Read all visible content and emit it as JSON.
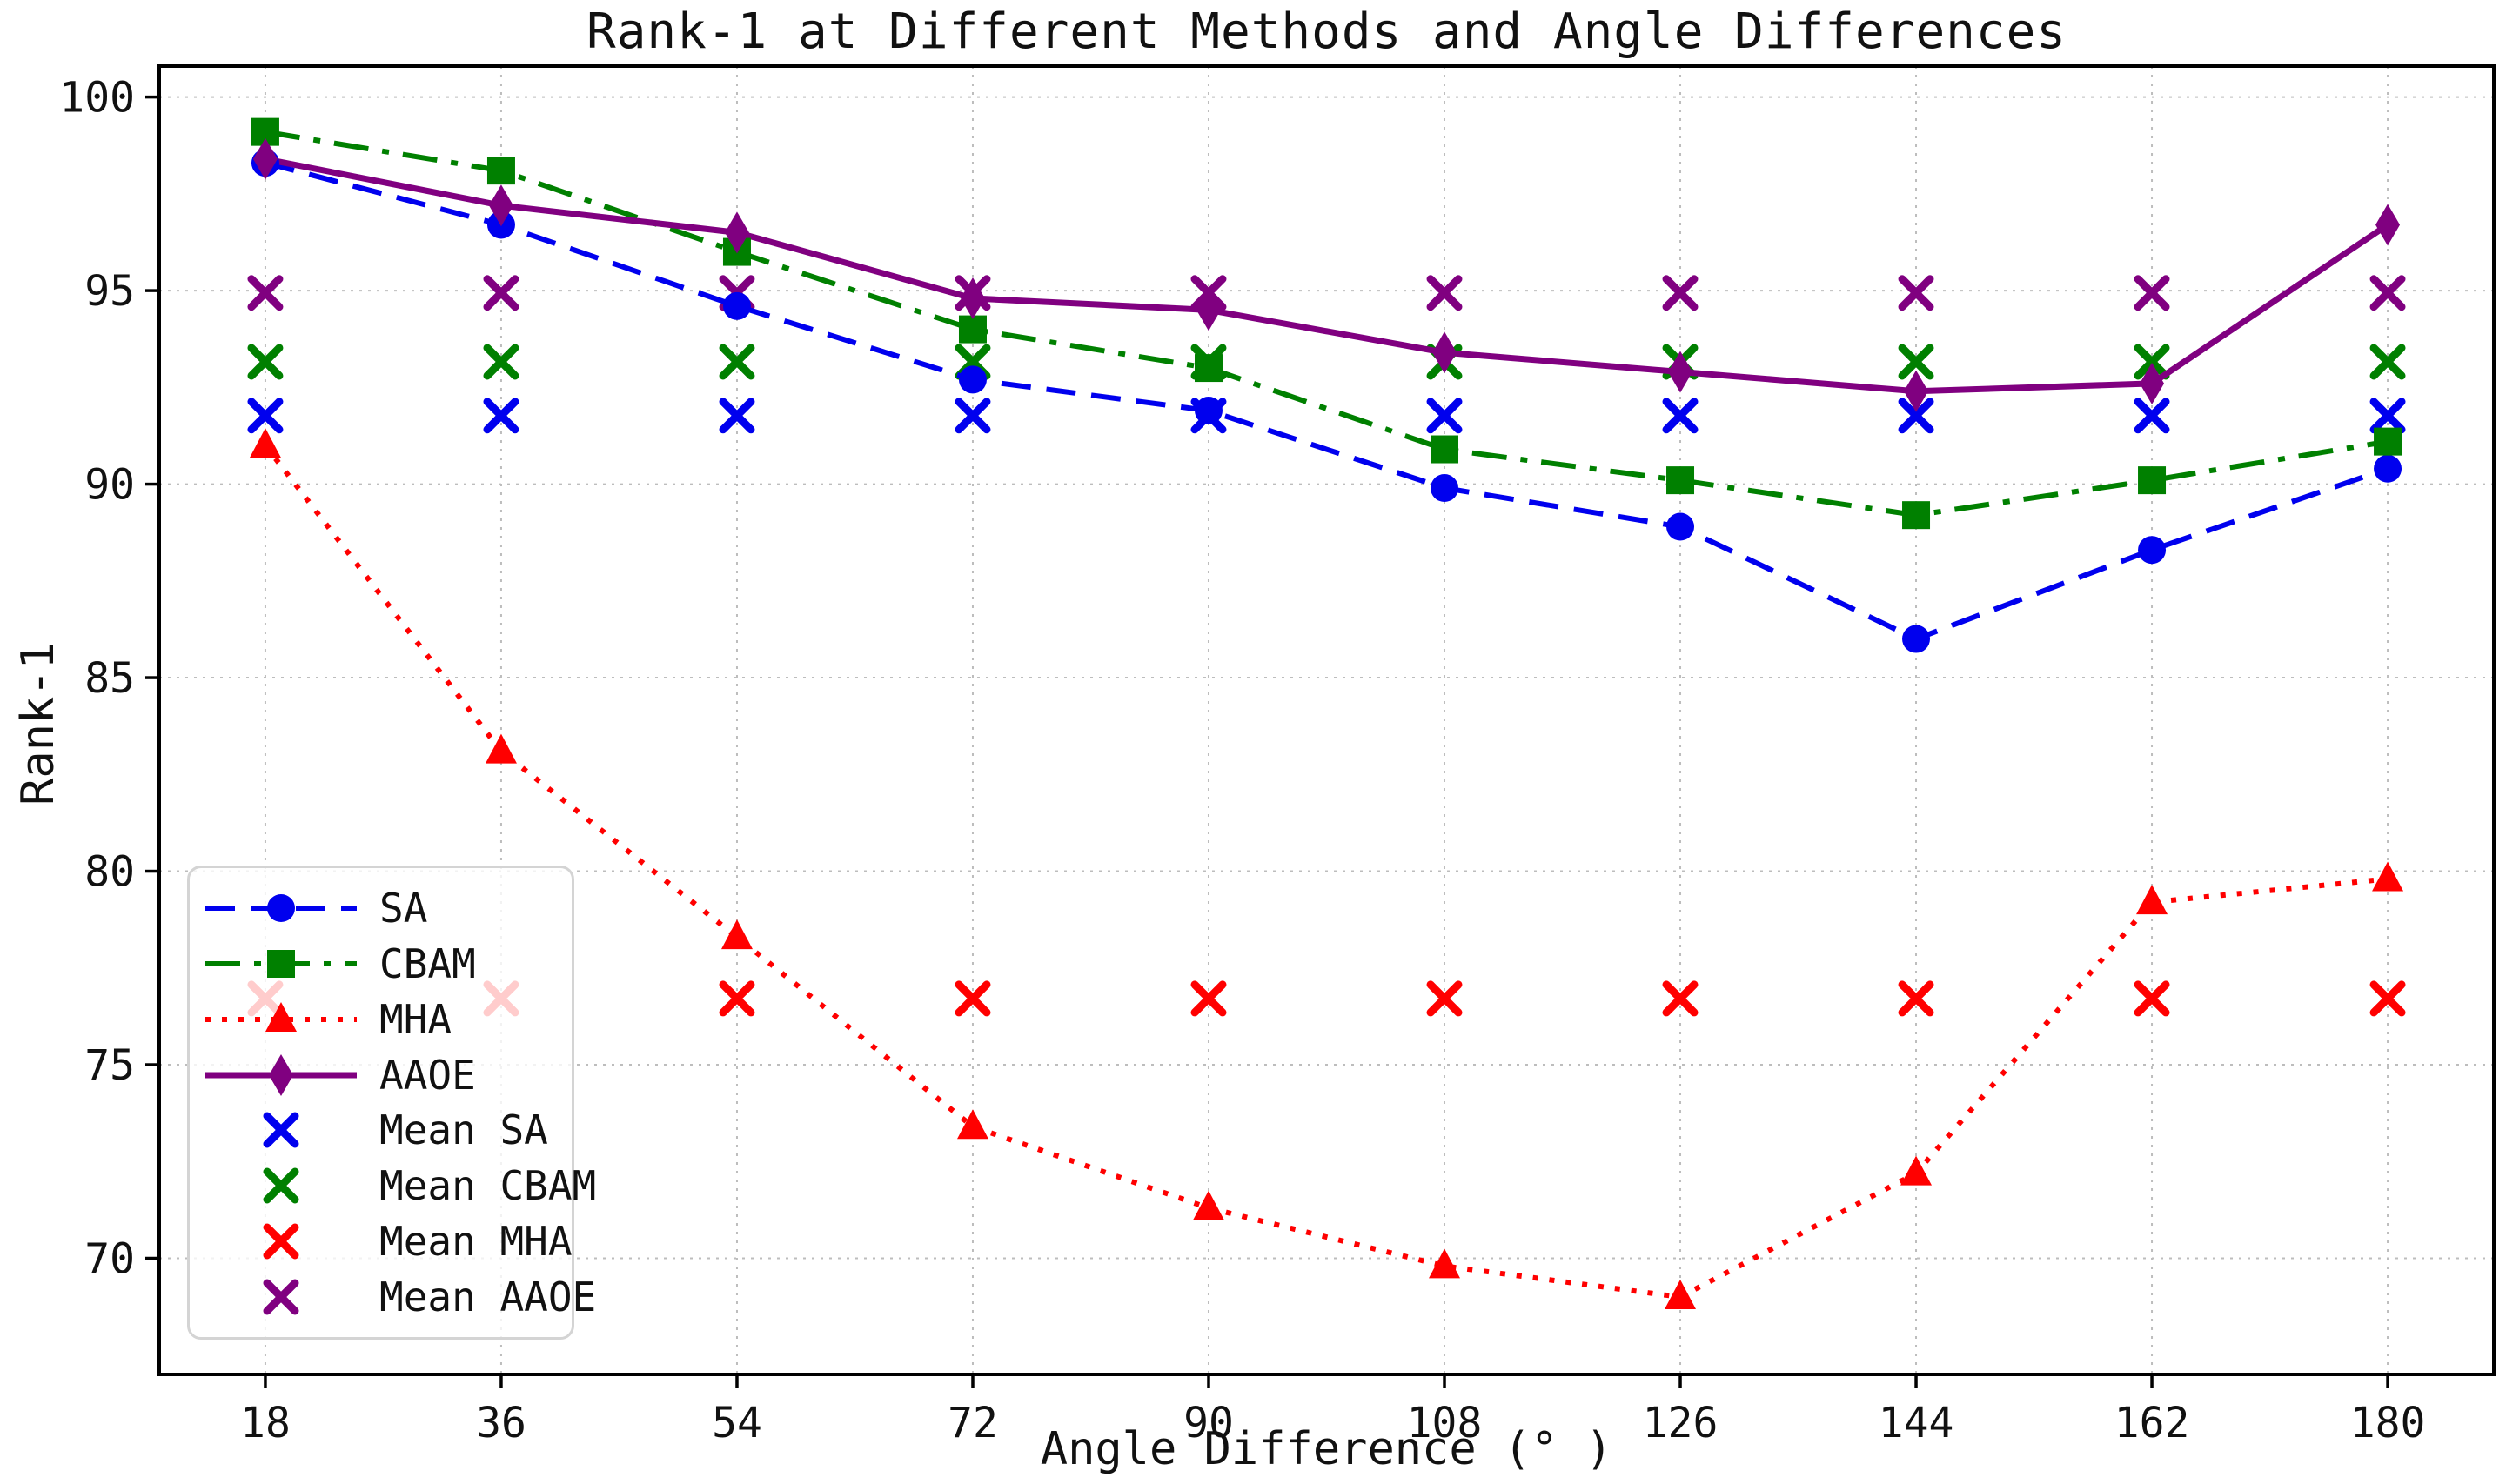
{
  "chart_data": {
    "type": "line",
    "title": "Rank-1 at Different Methods and Angle Differences",
    "xlabel": "Angle Difference (° )",
    "ylabel": "Rank-1",
    "x": [
      18,
      36,
      54,
      72,
      90,
      108,
      126,
      144,
      162,
      180
    ],
    "xticks": [
      18,
      36,
      54,
      72,
      90,
      108,
      126,
      144,
      162,
      180
    ],
    "yticks": [
      70,
      75,
      80,
      85,
      90,
      95,
      100
    ],
    "xlim": [
      9.9,
      188.1
    ],
    "ylim": [
      67.0,
      100.8
    ],
    "grid": true,
    "grid_color": "#bdbdbd",
    "axis_color": "#000000",
    "legend_position": "lower-left",
    "series": [
      {
        "name": "SA",
        "color": "#0000ee",
        "linestyle": "dashed",
        "marker": "circle",
        "values": [
          98.3,
          96.7,
          94.6,
          92.7,
          91.9,
          89.9,
          88.9,
          86.0,
          88.3,
          90.4
        ]
      },
      {
        "name": "CBAM",
        "color": "#008000",
        "linestyle": "dashdot",
        "marker": "square",
        "values": [
          99.1,
          98.1,
          96.0,
          94.0,
          93.0,
          90.9,
          90.1,
          89.2,
          90.1,
          91.1
        ]
      },
      {
        "name": "MHA",
        "color": "#ff0000",
        "linestyle": "dotted",
        "marker": "triangle",
        "values": [
          91.0,
          83.1,
          78.3,
          73.4,
          71.3,
          69.8,
          69.0,
          72.2,
          79.2,
          79.8
        ]
      },
      {
        "name": "AAOE",
        "color": "#800080",
        "linestyle": "solid",
        "marker": "diamond",
        "values": [
          98.4,
          97.2,
          96.5,
          94.8,
          94.5,
          93.4,
          92.9,
          92.4,
          92.6,
          96.7
        ]
      }
    ],
    "mean_series": [
      {
        "name": "Mean SA",
        "color": "#0000ee",
        "marker": "x",
        "value": 91.77
      },
      {
        "name": "Mean CBAM",
        "color": "#008000",
        "marker": "x",
        "value": 93.16
      },
      {
        "name": "Mean MHA",
        "color": "#ff0000",
        "marker": "x",
        "value": 76.71
      },
      {
        "name": "Mean AAOE",
        "color": "#800080",
        "marker": "x",
        "value": 94.94
      }
    ]
  }
}
